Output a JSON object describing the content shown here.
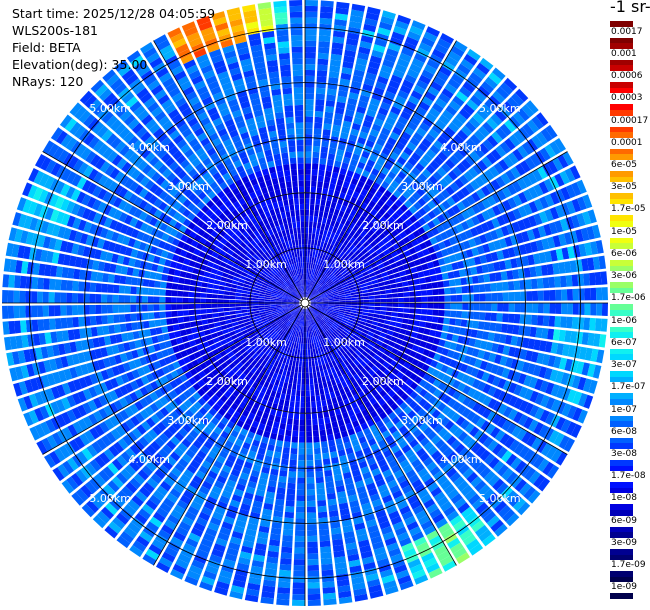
{
  "info": {
    "start_time": "Start time: 2025/12/28 04:05:59",
    "station": "WLS200s-181",
    "field": "Field: BETA",
    "elevation": "Elevation(deg): 35.00",
    "nrays": "NRays: 120"
  },
  "colorbar": {
    "unit_label": "-1 sr-",
    "labels": [
      "0.0017",
      "0.001",
      "0.0006",
      "0.0003",
      "0.00017",
      "0.0001",
      "6e-05",
      "3e-05",
      "1.7e-05",
      "1e-05",
      "6e-06",
      "3e-06",
      "1.7e-06",
      "1e-06",
      "6e-07",
      "3e-07",
      "1.7e-07",
      "1e-07",
      "6e-08",
      "3e-08",
      "1.7e-08",
      "1e-08",
      "6e-09",
      "3e-09",
      "1.7e-09",
      "1e-09"
    ],
    "colors": [
      "#7f0000",
      "#a00000",
      "#c80000",
      "#ff0000",
      "#ff3a00",
      "#ff6a00",
      "#ff9a00",
      "#ffc000",
      "#ffe400",
      "#f0ff10",
      "#c8ff38",
      "#9aff66",
      "#66ff96",
      "#38ffc8",
      "#10f0f0",
      "#00d8ff",
      "#00b0ff",
      "#0088ff",
      "#0060ff",
      "#0038ff",
      "#0010ff",
      "#0000e0",
      "#0000b8",
      "#000090",
      "#000070",
      "#00004c"
    ],
    "label_dark_text_from": 0
  },
  "chart_data": {
    "type": "heatmap",
    "projection": "polar-ppi",
    "field": "BETA",
    "n_rays": 120,
    "elevation_deg": 35.0,
    "range_rings_km": [
      1.0,
      2.0,
      3.0,
      4.0,
      5.0
    ],
    "ring_labels": [
      "1.00km",
      "2.00km",
      "3.00km",
      "4.00km",
      "5.00km"
    ],
    "max_range_km": 5.5,
    "spoke_step_deg": 30,
    "background_level_index": 18,
    "notes_levels": "values encoded as colorbar level indices (0 = 0.0017 top, 25 = 1e-09 bottom)",
    "hotspots": [
      {
        "azimuth_deg": 340,
        "range_km": [
          4.9,
          5.5
        ],
        "level_index": 4
      },
      {
        "azimuth_deg": 345,
        "range_km": [
          5.0,
          5.5
        ],
        "level_index": 7
      },
      {
        "azimuth_deg": 350,
        "range_km": [
          5.1,
          5.5
        ],
        "level_index": 12
      },
      {
        "azimuth_deg": 150,
        "range_km": [
          4.8,
          5.5
        ],
        "level_index": 12
      },
      {
        "azimuth_deg": 100,
        "range_km": [
          4.5,
          5.5
        ],
        "level_index": 15
      },
      {
        "azimuth_deg": 290,
        "range_km": [
          4.6,
          5.4
        ],
        "level_index": 15
      }
    ],
    "inner_level_index": 21
  }
}
